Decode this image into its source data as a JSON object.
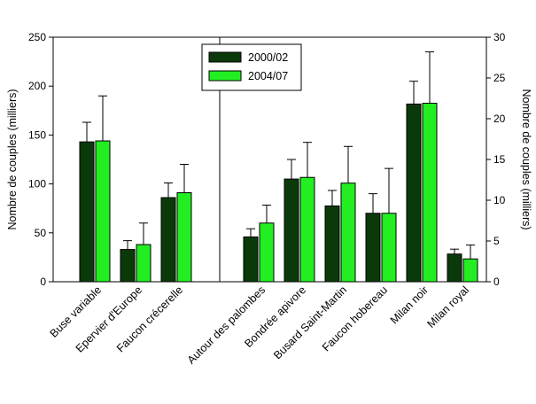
{
  "chart_data": {
    "type": "bar",
    "legend_position": "top-center",
    "grid": false,
    "series": [
      {
        "name": "2000/02",
        "color": "#0a3a0a"
      },
      {
        "name": "2004/07",
        "color": "#22ee22"
      }
    ],
    "left_panel": {
      "ylabel": "Nombre de couples (milliers)",
      "ylim": [
        0,
        250
      ],
      "yticks": [
        "0",
        "50",
        "100",
        "150",
        "200",
        "250"
      ],
      "categories": [
        {
          "label": "Buse variable",
          "v2000": 143,
          "err2000": 20,
          "v2004": 144,
          "err2004": 46
        },
        {
          "label": "Epervier d'Europe",
          "v2000": 33,
          "err2000": 9,
          "v2004": 38,
          "err2004": 22
        },
        {
          "label": "Faucon crécerelle",
          "v2000": 86,
          "err2000": 15,
          "v2004": 91,
          "err2004": 29
        }
      ]
    },
    "right_panel": {
      "ylabel": "Nombre de couples (milliers)",
      "ylim": [
        0,
        30
      ],
      "yticks": [
        "0",
        "5",
        "10",
        "15",
        "20",
        "25",
        "30"
      ],
      "categories": [
        {
          "label": "Autour des palombes",
          "v2000": 5.5,
          "err2000": 1.0,
          "v2004": 7.2,
          "err2004": 2.2
        },
        {
          "label": "Bondrée apivore",
          "v2000": 12.6,
          "err2000": 2.4,
          "v2004": 12.8,
          "err2004": 4.3
        },
        {
          "label": "Busard Saint-Martin",
          "v2000": 9.3,
          "err2000": 1.9,
          "v2004": 12.1,
          "err2004": 4.5
        },
        {
          "label": "Faucon hobereau",
          "v2000": 8.4,
          "err2000": 2.4,
          "v2004": 8.4,
          "err2004": 5.5
        },
        {
          "label": "Milan noir",
          "v2000": 21.8,
          "err2000": 2.8,
          "v2004": 21.9,
          "err2004": 6.3
        },
        {
          "label": "Milan royal",
          "v2000": 3.4,
          "err2000": 0.6,
          "v2004": 2.8,
          "err2004": 1.7
        }
      ]
    }
  }
}
